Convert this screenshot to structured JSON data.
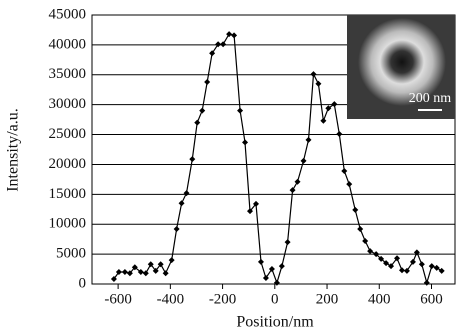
{
  "chart_data": {
    "type": "line",
    "x_label": "Position/nm",
    "y_label": "Intensity/a.u.",
    "inset_scale_label": "200 nm",
    "x": [
      -616,
      -597,
      -574,
      -555,
      -536,
      -513,
      -494,
      -475,
      -456,
      -437,
      -418,
      -395,
      -376,
      -357,
      -338,
      -316,
      -297,
      -278,
      -259,
      -240,
      -217,
      -198,
      -175,
      -156,
      -133,
      -114,
      -95,
      -72,
      -53,
      -34,
      -11,
      8,
      27,
      49,
      68,
      87,
      110,
      129,
      148,
      167,
      186,
      205,
      228,
      247,
      266,
      285,
      308,
      327,
      346,
      365,
      388,
      407,
      426,
      445,
      468,
      487,
      506,
      529,
      544,
      563,
      582,
      601,
      620,
      639
    ],
    "series": [
      {
        "color": "#000000",
        "values": [
          840,
          2000,
          2000,
          1800,
          2800,
          2000,
          1800,
          3300,
          2200,
          3300,
          1800,
          4000,
          9200,
          13500,
          15200,
          20900,
          27000,
          29000,
          33800,
          38600,
          40100,
          40100,
          41800,
          41600,
          29000,
          23700,
          12200,
          13400,
          3700,
          1000,
          2500,
          200,
          3000,
          7000,
          15700,
          17100,
          20600,
          24100,
          35100,
          33500,
          27300,
          29400,
          30100,
          25100,
          18900,
          16700,
          12400,
          9200,
          7200,
          5500,
          5000,
          4200,
          3500,
          3000,
          4300,
          2300,
          2200,
          3700,
          5300,
          3300,
          200,
          3000,
          2700,
          2200
        ]
      }
    ],
    "xlim": [
      -700,
      690
    ],
    "ylim": [
      0,
      45000
    ],
    "xticks": [
      -600,
      -400,
      -200,
      0,
      200,
      400,
      600
    ],
    "yticks": [
      0,
      5000,
      10000,
      15000,
      20000,
      25000,
      30000,
      35000,
      40000,
      45000
    ],
    "grid": true
  }
}
